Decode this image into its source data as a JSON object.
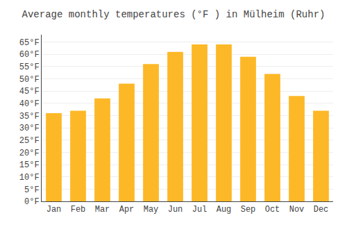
{
  "chart_data": {
    "type": "bar",
    "title": "Average monthly temperatures (°F ) in Mülheim (Ruhr)",
    "categories": [
      "Jan",
      "Feb",
      "Mar",
      "Apr",
      "May",
      "Jun",
      "Jul",
      "Aug",
      "Sep",
      "Oct",
      "Nov",
      "Dec"
    ],
    "values": [
      36,
      37,
      42,
      48,
      56,
      61,
      64,
      64,
      59,
      52,
      43,
      37
    ],
    "color": "#FDB827",
    "ylim": [
      0,
      68
    ],
    "yticks": [
      {
        "value": 0,
        "label": "0°F"
      },
      {
        "value": 5,
        "label": "5°F"
      },
      {
        "value": 10,
        "label": "10°F"
      },
      {
        "value": 15,
        "label": "15°F"
      },
      {
        "value": 20,
        "label": "20°F"
      },
      {
        "value": 25,
        "label": "25°F"
      },
      {
        "value": 30,
        "label": "30°F"
      },
      {
        "value": 35,
        "label": "35°F"
      },
      {
        "value": 40,
        "label": "40°F"
      },
      {
        "value": 45,
        "label": "45°F"
      },
      {
        "value": 50,
        "label": "50°F"
      },
      {
        "value": 55,
        "label": "55°F"
      },
      {
        "value": 60,
        "label": "60°F"
      },
      {
        "value": 65,
        "label": "65°F"
      }
    ],
    "grid": true
  }
}
